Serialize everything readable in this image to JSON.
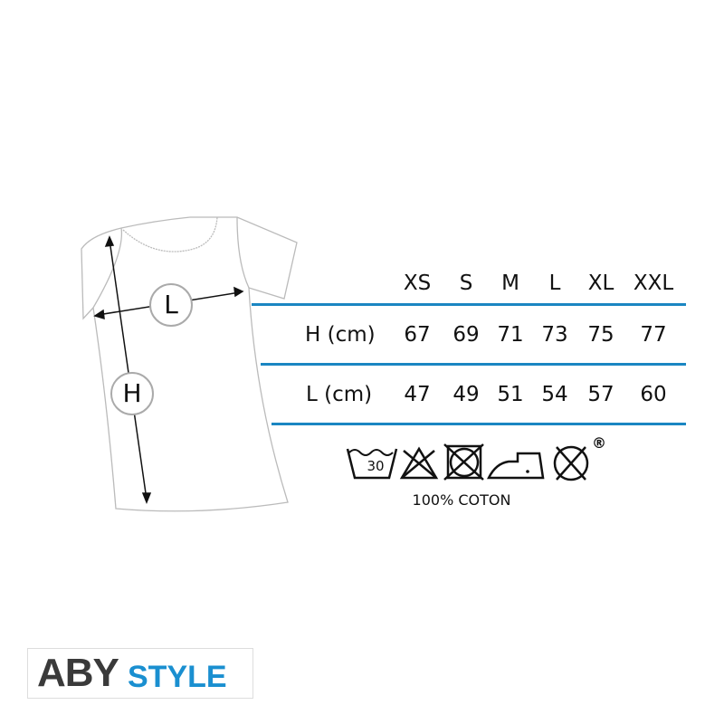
{
  "size_chart": {
    "sizes": [
      "XS",
      "S",
      "M",
      "L",
      "XL",
      "XXL"
    ],
    "rows": [
      {
        "label": "H (cm)",
        "values": [
          "67",
          "69",
          "71",
          "73",
          "75",
          "77"
        ]
      },
      {
        "label": "L (cm)",
        "values": [
          "47",
          "49",
          "51",
          "54",
          "57",
          "60"
        ]
      }
    ]
  },
  "diagram": {
    "width_marker": "L",
    "height_marker": "H"
  },
  "care": {
    "icons": [
      "wash-30-icon",
      "no-bleach-icon",
      "no-tumble-dry-icon",
      "iron-low-icon",
      "no-dry-clean-icon"
    ],
    "wash_temp": "30",
    "registered": "®",
    "material": "100% COTON"
  },
  "brand": {
    "part1": "ABY",
    "part2": "STYLE"
  },
  "colors": {
    "accent": "#1a86c2",
    "brand_blue": "#1a8fd0",
    "brand_gray": "#3a3a3a"
  }
}
